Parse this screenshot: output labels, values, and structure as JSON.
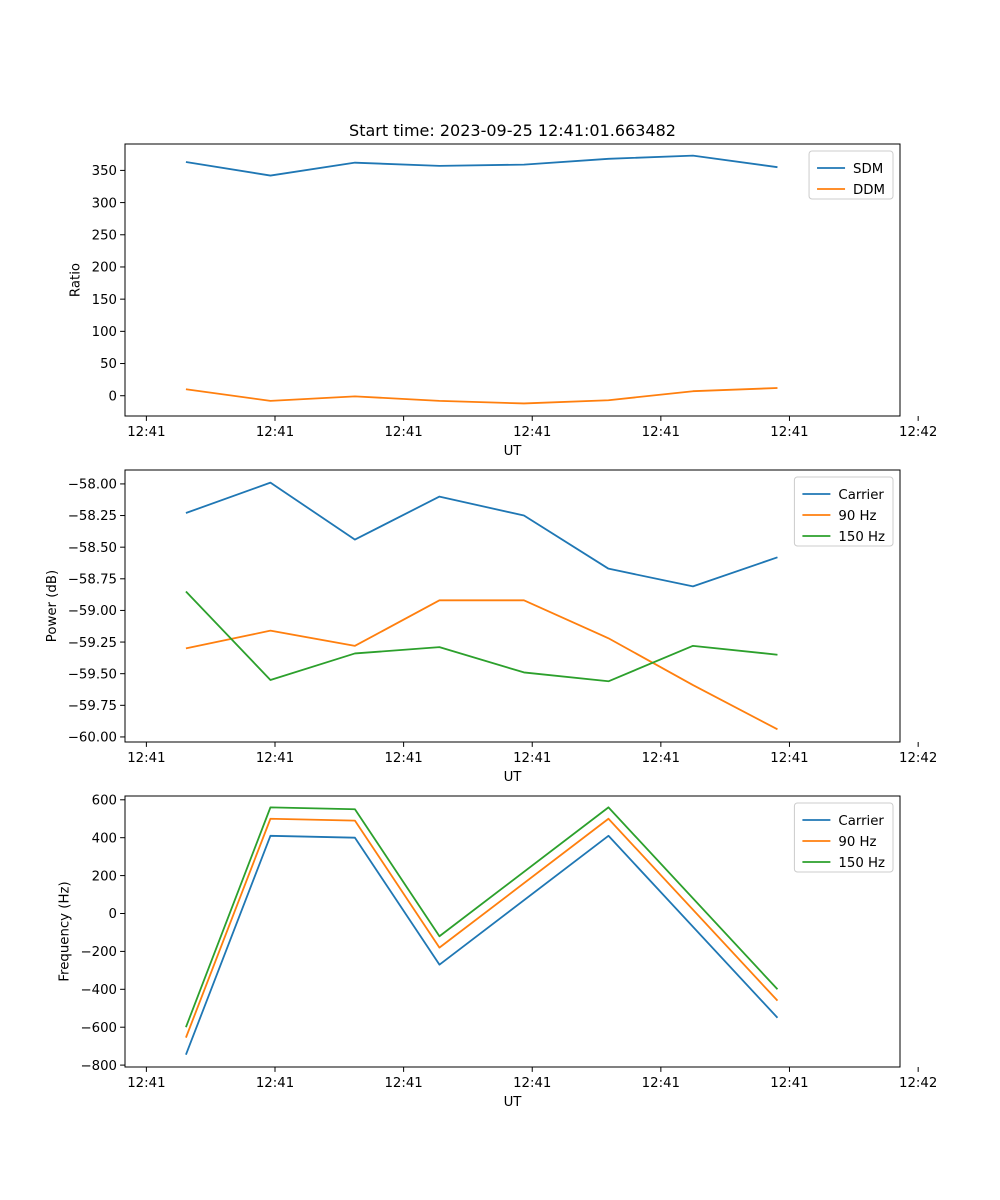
{
  "figure_title": "Start time: 2023-09-25 12:41:01.663482",
  "colors": {
    "blue": "#1f77b4",
    "orange": "#ff7f0e",
    "green": "#2ca02c"
  },
  "chart_data": [
    {
      "type": "line",
      "title": "Start time: 2023-09-25 12:41:01.663482",
      "xlabel": "UT",
      "ylabel": "Ratio",
      "x": [
        1,
        2,
        3,
        4,
        5,
        6,
        7,
        8
      ],
      "xlim": [
        0.279,
        9.45
      ],
      "x_ticks": [
        0.532,
        2.054,
        3.576,
        5.098,
        6.62,
        8.142,
        9.665
      ],
      "x_tick_labels": [
        "12:41",
        "12:41",
        "12:41",
        "12:41",
        "12:41",
        "12:41",
        "12:42"
      ],
      "ylim": [
        -31.5,
        391
      ],
      "y_ticks": [
        0,
        50,
        100,
        150,
        200,
        250,
        300,
        350
      ],
      "y_tick_labels": [
        "0",
        "50",
        "100",
        "150",
        "200",
        "250",
        "300",
        "350"
      ],
      "legend_position": "top-right",
      "series": [
        {
          "name": "SDM",
          "color": "#1f77b4",
          "values": [
            363,
            342,
            362,
            357,
            359,
            368,
            373,
            355
          ]
        },
        {
          "name": "DDM",
          "color": "#ff7f0e",
          "values": [
            10,
            -8,
            -1,
            -8,
            -12,
            -7,
            7,
            12
          ]
        }
      ]
    },
    {
      "type": "line",
      "title": "",
      "xlabel": "UT",
      "ylabel": "Power (dB)",
      "x": [
        1,
        2,
        3,
        4,
        5,
        6,
        7,
        8
      ],
      "xlim": [
        0.279,
        9.45
      ],
      "x_ticks": [
        0.532,
        2.054,
        3.576,
        5.098,
        6.62,
        8.142,
        9.665
      ],
      "x_tick_labels": [
        "12:41",
        "12:41",
        "12:41",
        "12:41",
        "12:41",
        "12:41",
        "12:42"
      ],
      "ylim": [
        -60.04,
        -57.89
      ],
      "y_ticks": [
        -58.0,
        -58.25,
        -58.5,
        -58.75,
        -59.0,
        -59.25,
        -59.5,
        -59.75,
        -60.0
      ],
      "y_tick_labels": [
        "−58.00",
        "−58.25",
        "−58.50",
        "−58.75",
        "−59.00",
        "−59.25",
        "−59.50",
        "−59.75",
        "−60.00"
      ],
      "legend_position": "top-right",
      "series": [
        {
          "name": "Carrier",
          "color": "#1f77b4",
          "values": [
            -58.23,
            -57.99,
            -58.44,
            -58.1,
            -58.25,
            -58.67,
            -58.81,
            -58.58
          ]
        },
        {
          "name": "90 Hz",
          "color": "#ff7f0e",
          "values": [
            -59.3,
            -59.16,
            -59.28,
            -58.92,
            -58.92,
            -59.22,
            -59.59,
            -59.94
          ]
        },
        {
          "name": "150 Hz",
          "color": "#2ca02c",
          "values": [
            -58.85,
            -59.55,
            -59.34,
            -59.29,
            -59.49,
            -59.56,
            -59.28,
            -59.35
          ]
        }
      ]
    },
    {
      "type": "line",
      "title": "",
      "xlabel": "UT",
      "ylabel": "Frequency (Hz)",
      "x": [
        1,
        2,
        3,
        4,
        5,
        6,
        7,
        8
      ],
      "xlim": [
        0.279,
        9.45
      ],
      "x_ticks": [
        0.532,
        2.054,
        3.576,
        5.098,
        6.62,
        8.142,
        9.665
      ],
      "x_tick_labels": [
        "12:41",
        "12:41",
        "12:41",
        "12:41",
        "12:41",
        "12:41",
        "12:42"
      ],
      "ylim": [
        -810,
        620
      ],
      "y_ticks": [
        600,
        400,
        200,
        0,
        -200,
        -400,
        -600,
        -800
      ],
      "y_tick_labels": [
        "600",
        "400",
        "200",
        "0",
        "−200",
        "−400",
        "−600",
        "−800"
      ],
      "legend_position": "top-right",
      "series": [
        {
          "name": "Carrier",
          "color": "#1f77b4",
          "values": [
            -745,
            410,
            400,
            -270,
            null,
            410,
            null,
            -550
          ]
        },
        {
          "name": "90 Hz",
          "color": "#ff7f0e",
          "values": [
            -655,
            500,
            490,
            -180,
            null,
            500,
            null,
            -460
          ]
        },
        {
          "name": "150 Hz",
          "color": "#2ca02c",
          "values": [
            -600,
            560,
            550,
            -120,
            null,
            560,
            null,
            -400
          ]
        }
      ]
    }
  ]
}
